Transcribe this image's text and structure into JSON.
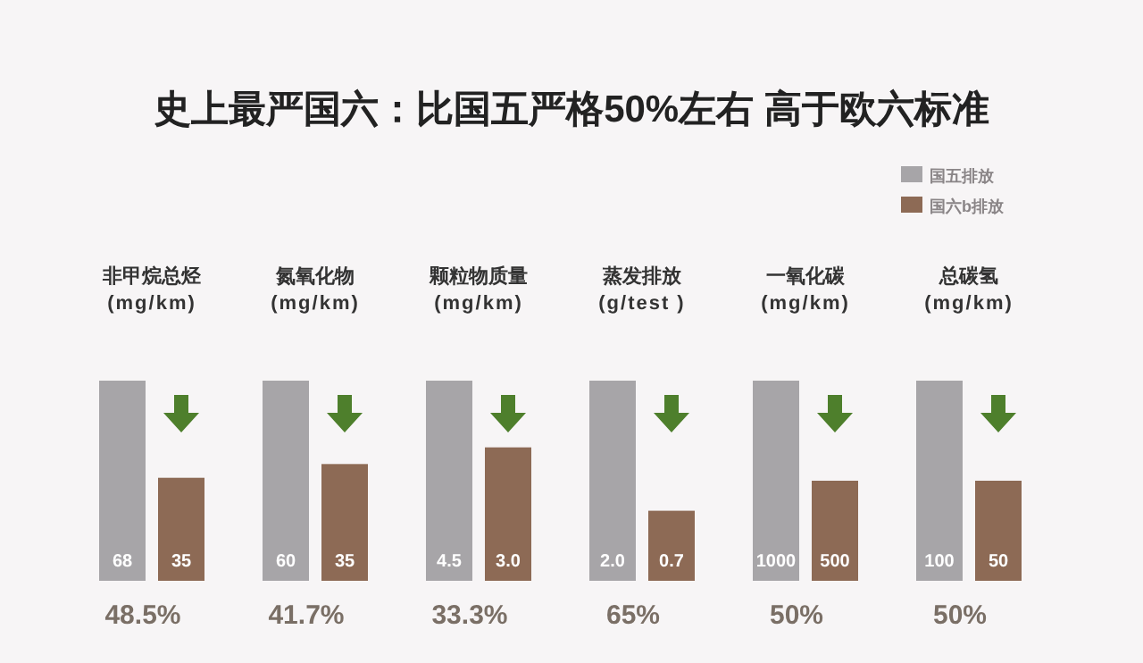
{
  "chart_data": [
    {
      "type": "other",
      "title": "史上最严国六：比国五严格50%左右 高于欧六标准"
    },
    {
      "type": "bar",
      "title": "非甲烷总烃",
      "subtitle": "(mg/km)",
      "categories": [
        null
      ],
      "series": [
        {
          "color": "#a7a5a8",
          "values": [
            68
          ],
          "value_labels": [
            "68"
          ]
        },
        {
          "color": "#8d6a55",
          "values": [
            35
          ],
          "value_labels": [
            "35"
          ]
        }
      ],
      "annotations": [
        "48.5%"
      ]
    },
    {
      "type": "bar",
      "title": "氮氧化物",
      "subtitle": "(mg/km)",
      "categories": [
        null
      ],
      "series": [
        {
          "color": "#a7a5a8",
          "values": [
            60
          ],
          "value_labels": [
            "60"
          ]
        },
        {
          "color": "#8d6a55",
          "values": [
            35
          ],
          "value_labels": [
            "35"
          ]
        }
      ],
      "annotations": [
        "41.7%"
      ]
    },
    {
      "type": "bar",
      "title": "颗粒物质量",
      "subtitle": "(mg/km)",
      "categories": [
        null
      ],
      "series": [
        {
          "color": "#a7a5a8",
          "values": [
            4.5
          ],
          "value_labels": [
            "4.5"
          ]
        },
        {
          "color": "#8d6a55",
          "values": [
            3.0
          ],
          "value_labels": [
            "3.0"
          ]
        }
      ],
      "annotations": [
        "33.3%"
      ]
    },
    {
      "type": "bar",
      "title": "蒸发排放",
      "subtitle": "(g/test )",
      "categories": [
        null
      ],
      "series": [
        {
          "color": "#a7a5a8",
          "values": [
            2.0
          ],
          "value_labels": [
            "2.0"
          ]
        },
        {
          "color": "#8d6a55",
          "values": [
            0.7
          ],
          "value_labels": [
            "0.7"
          ]
        }
      ],
      "annotations": [
        "65%"
      ]
    },
    {
      "type": "bar",
      "title": "一氧化碳",
      "subtitle": "(mg/km)",
      "categories": [
        null
      ],
      "series": [
        {
          "color": "#a7a5a8",
          "values": [
            1000
          ],
          "value_labels": [
            "1000"
          ]
        },
        {
          "color": "#8d6a55",
          "values": [
            500
          ],
          "value_labels": [
            "500"
          ]
        }
      ],
      "annotations": [
        "50%"
      ]
    },
    {
      "type": "bar",
      "title": "总碳氢",
      "subtitle": "(mg/km)",
      "categories": [
        null
      ],
      "series": [
        {
          "name": "国五排放",
          "color": "#a7a5a8",
          "values": [
            100
          ],
          "value_labels": [
            "100"
          ]
        },
        {
          "name": "国六b排放",
          "color": "#8d6a55",
          "values": [
            50
          ],
          "value_labels": [
            "50"
          ]
        }
      ],
      "annotations": [
        "50%"
      ],
      "legend": "top"
    }
  ]
}
